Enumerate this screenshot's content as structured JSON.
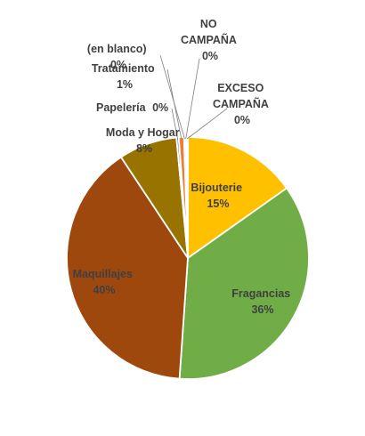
{
  "chart_data": {
    "type": "pie",
    "title": "",
    "start_angle_deg": 0,
    "direction": "clockwise",
    "slices": [
      {
        "name": "Bijouterie",
        "pct_label": "15%",
        "value": 15.2,
        "color": "#FFC000"
      },
      {
        "name": "Fragancias",
        "pct_label": "36%",
        "value": 35.9,
        "color": "#70AD47"
      },
      {
        "name": "Maquillajes",
        "pct_label": "40%",
        "value": 39.6,
        "color": "#9E480E"
      },
      {
        "name": "Moda y Hogar",
        "pct_label": "8%",
        "value": 7.8,
        "color": "#997300"
      },
      {
        "name": "Papelería",
        "pct_label": "0%",
        "value": 0.3,
        "color": "#4472C4"
      },
      {
        "name": "Tratamiento",
        "pct_label": "1%",
        "value": 0.7,
        "color": "#ED7D31"
      },
      {
        "name": "(en blanco)",
        "pct_label": "0%",
        "value": 0.15,
        "color": "#A5A5A5"
      },
      {
        "name": "NO CAMPAÑA",
        "pct_label": "0%",
        "value": 0.15,
        "color": "#5B9BD5"
      },
      {
        "name": "EXCESO CAMPAÑA",
        "pct_label": "0%",
        "value": 0.2,
        "color": "#264478"
      }
    ]
  }
}
